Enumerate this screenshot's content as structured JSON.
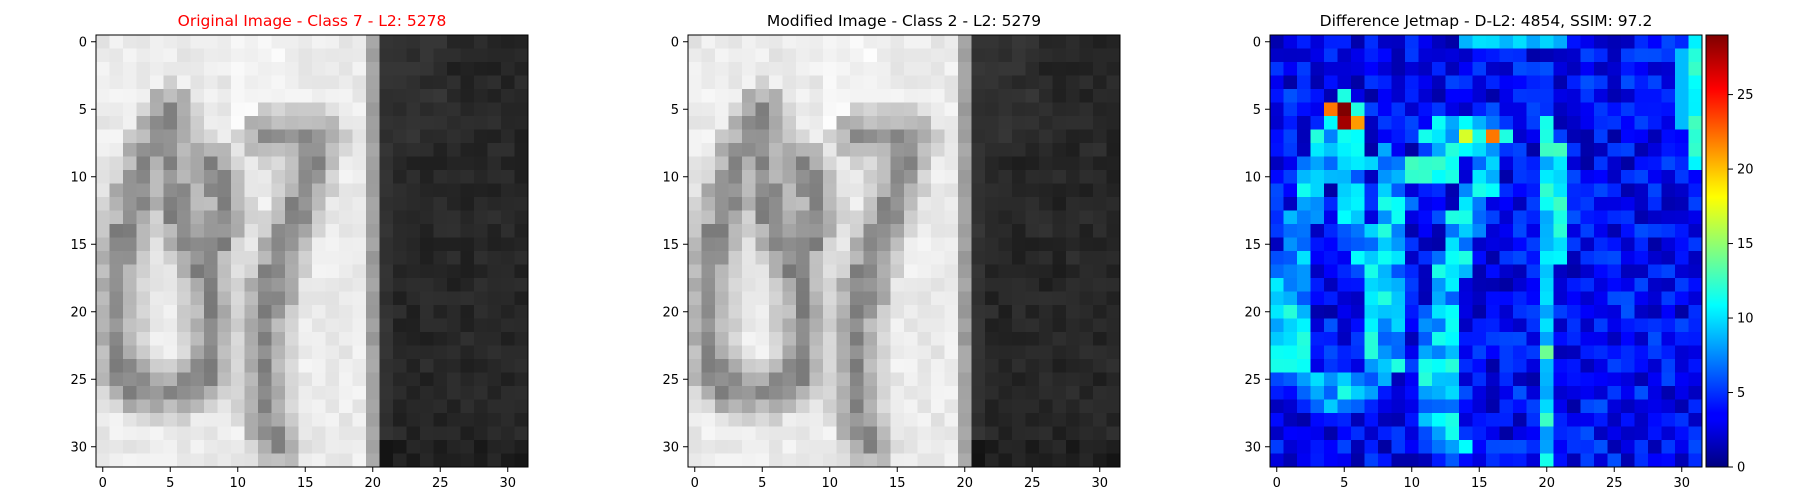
{
  "figure": {
    "background": "#ffffff"
  },
  "chart_data": [
    {
      "type": "heatmap",
      "title": "Original Image - Class 7 - L2: 5278",
      "title_color": "#ff0000",
      "colormap": "gray",
      "grid_size": [
        32,
        32
      ],
      "x_ticks": [
        0,
        5,
        10,
        15,
        20,
        25,
        30
      ],
      "y_ticks": [
        0,
        5,
        10,
        15,
        20,
        25,
        30
      ],
      "xlim": [
        -0.5,
        31.5
      ],
      "ylim": [
        31.5,
        -0.5
      ],
      "image_description": "grayscale 32x32 crop: light background left two thirds with a dark handwritten stroke shape, dark band on right third"
    },
    {
      "type": "heatmap",
      "title": "Modified Image - Class 2 - L2: 5279",
      "title_color": "#000000",
      "colormap": "gray",
      "grid_size": [
        32,
        32
      ],
      "x_ticks": [
        0,
        5,
        10,
        15,
        20,
        25,
        30
      ],
      "y_ticks": [
        0,
        5,
        10,
        15,
        20,
        25,
        30
      ],
      "xlim": [
        -0.5,
        31.5
      ],
      "ylim": [
        31.5,
        -0.5
      ],
      "image_description": "near-identical copy of the original crop"
    },
    {
      "type": "heatmap",
      "title": "Difference Jetmap - D-L2: 4854, SSIM: 97.2",
      "title_color": "#000000",
      "colormap": "jet",
      "grid_size": [
        32,
        32
      ],
      "x_ticks": [
        0,
        5,
        10,
        15,
        20,
        25,
        30
      ],
      "y_ticks": [
        0,
        5,
        10,
        15,
        20,
        25,
        30
      ],
      "xlim": [
        -0.5,
        31.5
      ],
      "ylim": [
        31.5,
        -0.5
      ],
      "colorbar": {
        "range": [
          0,
          29
        ],
        "ticks": [
          0,
          5,
          10,
          15,
          20,
          25
        ]
      },
      "hotspots": [
        {
          "x": 5,
          "y": 5,
          "value": 29
        },
        {
          "x": 5,
          "y": 6,
          "value": 28
        },
        {
          "x": 4,
          "y": 5,
          "value": 22
        },
        {
          "x": 6,
          "y": 6,
          "value": 21
        },
        {
          "x": 16,
          "y": 7,
          "value": 22
        },
        {
          "x": 14,
          "y": 7,
          "value": 17
        }
      ]
    }
  ]
}
